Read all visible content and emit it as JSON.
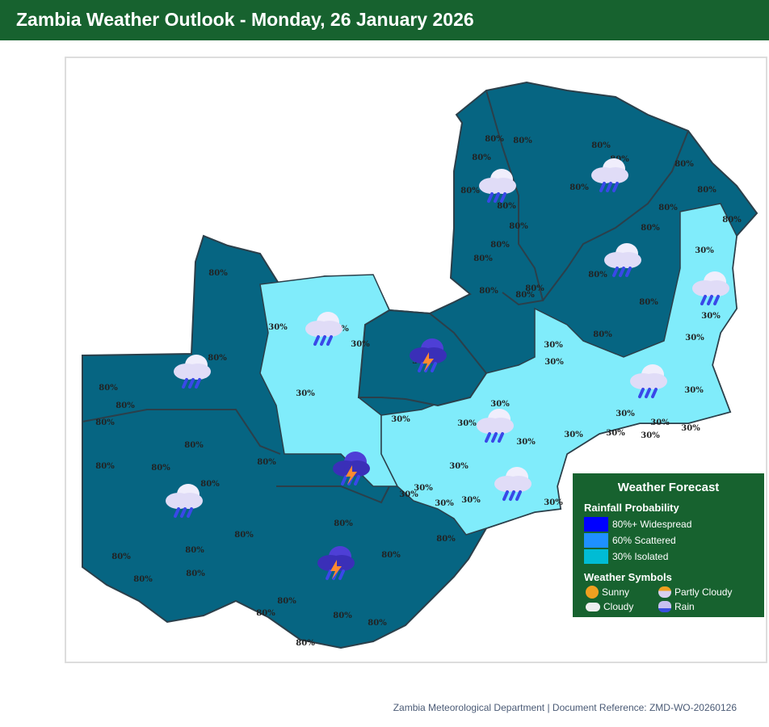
{
  "title": "Zambia Weather Outlook - Monday, 26 January 2026",
  "legend": {
    "title": "Weather Forecast",
    "rain_heading": "Rainfall Probability",
    "items": [
      {
        "label": "80%+ Widespread",
        "color": "#0000ff"
      },
      {
        "label": "60% Scattered",
        "color": "#1e90ff"
      },
      {
        "label": "30% Isolated",
        "color": "#00bcd4"
      }
    ],
    "symbols_heading": "Weather Symbols",
    "symbols": [
      "Sunny",
      "Partly Cloudy",
      "Cloudy",
      "Rain"
    ]
  },
  "map": {
    "colors": {
      "high": "#066582",
      "low": "#80ecfb",
      "border": "#2b3f4a"
    },
    "labels": [
      "80%",
      "80%",
      "80%",
      "80%",
      "80%",
      "80%",
      "80%",
      "80%",
      "80%",
      "80%",
      "80%",
      "80%",
      "80%",
      "80%",
      "80%",
      "80%",
      "80%",
      "80%",
      "80%",
      "80%",
      "80%",
      "80%",
      "80%",
      "80%",
      "80%",
      "80%",
      "80%",
      "80%",
      "80%",
      "80%",
      "80%",
      "80%",
      "80%",
      "80%",
      "80%",
      "80%",
      "80%",
      "80%",
      "80%",
      "80%",
      "80%",
      "80%",
      "80%",
      "80%",
      "80%",
      "30%",
      "30%",
      "30%",
      "30%",
      "30%",
      "30%",
      "30%",
      "30%",
      "30%",
      "30%",
      "30%",
      "30%",
      "30%",
      "30%",
      "30%",
      "30%",
      "30%",
      "30%",
      "30%",
      "30%",
      "30%",
      "30%",
      "30%",
      "30%",
      "30%",
      "30%",
      "30%"
    ]
  },
  "footer": "Zambia Meteorological Department | Document Reference: ZMD-WO-20260126"
}
